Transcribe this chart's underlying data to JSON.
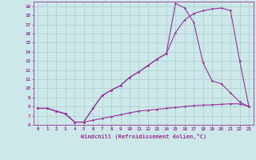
{
  "xlabel": "Windchill (Refroidissement éolien,°C)",
  "background_color": "#cce8e8",
  "grid_color": "#aacece",
  "line_color": "#993399",
  "xlim": [
    -0.5,
    23.5
  ],
  "ylim": [
    6,
    19.5
  ],
  "xticks": [
    0,
    1,
    2,
    3,
    4,
    5,
    6,
    7,
    8,
    9,
    10,
    11,
    12,
    13,
    14,
    15,
    16,
    17,
    18,
    19,
    20,
    21,
    22,
    23
  ],
  "yticks": [
    6,
    7,
    8,
    9,
    10,
    11,
    12,
    13,
    14,
    15,
    16,
    17,
    18,
    19
  ],
  "series1_x": [
    0,
    1,
    2,
    3,
    4,
    5,
    6,
    7,
    8,
    9,
    10,
    11,
    12,
    13,
    14,
    15,
    16,
    17,
    18,
    19,
    20,
    21,
    22,
    23
  ],
  "series1_y": [
    7.8,
    7.8,
    7.5,
    7.2,
    6.3,
    6.3,
    6.5,
    6.7,
    6.9,
    7.1,
    7.3,
    7.5,
    7.6,
    7.7,
    7.8,
    7.9,
    8.0,
    8.1,
    8.15,
    8.2,
    8.25,
    8.3,
    8.3,
    8.0
  ],
  "series2_x": [
    0,
    1,
    2,
    3,
    4,
    5,
    6,
    7,
    8,
    9,
    10,
    11,
    12,
    13,
    14,
    15,
    16,
    17,
    18,
    19,
    20,
    21,
    22,
    23
  ],
  "series2_y": [
    7.8,
    7.8,
    7.5,
    7.2,
    6.3,
    6.3,
    7.8,
    9.2,
    9.8,
    10.3,
    11.2,
    11.8,
    12.5,
    13.2,
    13.8,
    16.1,
    17.5,
    18.2,
    18.5,
    18.7,
    18.8,
    18.5,
    13.0,
    8.0
  ],
  "series3_x": [
    0,
    1,
    2,
    3,
    4,
    5,
    6,
    7,
    8,
    9,
    10,
    11,
    12,
    13,
    14,
    15,
    16,
    17,
    18,
    19,
    20,
    21,
    22,
    23
  ],
  "series3_y": [
    7.8,
    7.8,
    7.5,
    7.2,
    6.3,
    6.3,
    7.8,
    9.2,
    9.8,
    10.3,
    11.2,
    11.8,
    12.5,
    13.2,
    13.8,
    19.3,
    18.8,
    17.2,
    12.8,
    10.8,
    10.5,
    9.5,
    8.5,
    8.0
  ],
  "marker": "o",
  "marker_size": 1.8,
  "linewidth": 0.8
}
